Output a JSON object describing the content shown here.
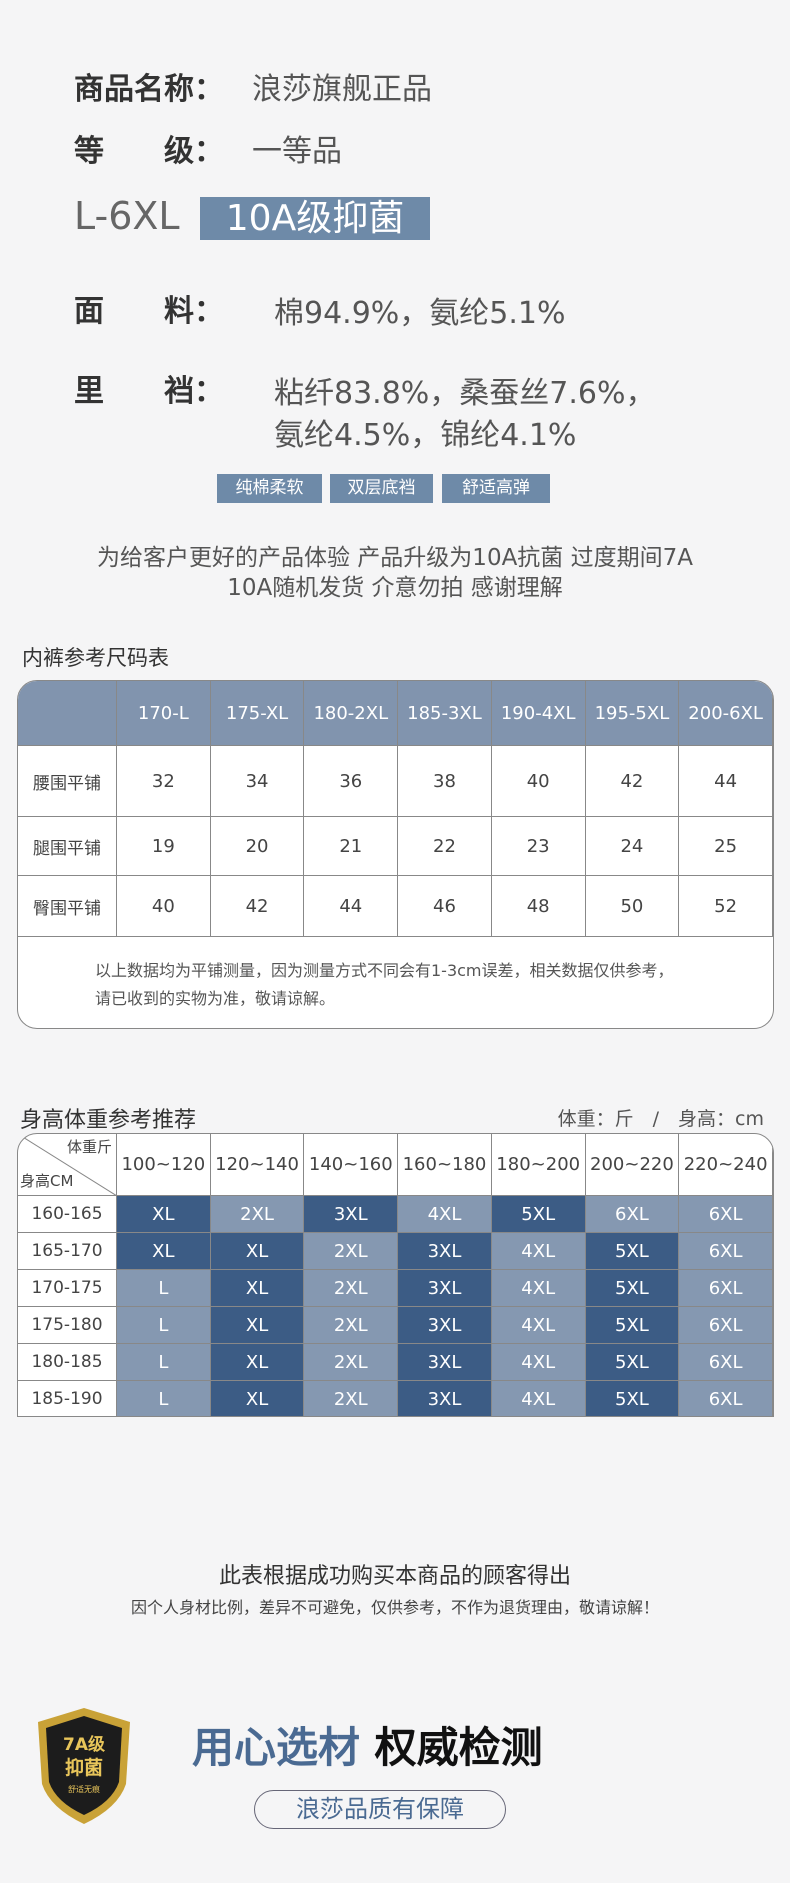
{
  "product": {
    "name": {
      "label": "商品名称：",
      "value": "浪莎旗舰正品"
    },
    "grade": {
      "label": "等　　级：",
      "value": "一等品"
    },
    "size_range": "L-6XL",
    "badge": "10A级抑菌",
    "fabric": {
      "label": "面　　料：",
      "value": "棉94.9%，氨纶5.1%"
    },
    "crotch": {
      "label": "里　　裆：",
      "lines": [
        "粘纤83.8%，桑蚕丝7.6%，",
        "氨纶4.5%，锦纶4.1%"
      ]
    },
    "tags": [
      "纯棉柔软",
      "双层底裆",
      "舒适高弹"
    ]
  },
  "notice": [
    "为给客户更好的产品体验 产品升级为10A抗菌 过度期间7A",
    "10A随机发货 介意勿拍 感谢理解"
  ],
  "size_table": {
    "title": "内裤参考尺码表",
    "columns": [
      "170-L",
      "175-XL",
      "180-2XL",
      "185-3XL",
      "190-4XL",
      "195-5XL",
      "200-6XL"
    ],
    "rows": [
      {
        "label": "腰围平铺",
        "values": [
          32,
          34,
          36,
          38,
          40,
          42,
          44
        ]
      },
      {
        "label": "腿围平铺",
        "values": [
          19,
          20,
          21,
          22,
          23,
          24,
          25
        ]
      },
      {
        "label": "臀围平铺",
        "values": [
          40,
          42,
          44,
          46,
          48,
          50,
          52
        ]
      }
    ],
    "note": [
      "以上数据均为平铺测量，因为测量方式不同会有1-3cm误差，相关数据仅供参考，",
      "请已收到的实物为准，敬请谅解。"
    ]
  },
  "recommend_table": {
    "title": "身高体重参考推荐",
    "unit_note": "体重：斤　/　身高：cm",
    "corner": {
      "top": "体重斤",
      "bottom": "身高CM"
    },
    "columns": [
      "100~120",
      "120~140",
      "140~160",
      "160~180",
      "180~200",
      "200~220",
      "220~240"
    ],
    "rows": [
      {
        "label": "160-165",
        "sizes": [
          "XL",
          "2XL",
          "3XL",
          "4XL",
          "5XL",
          "6XL",
          "6XL"
        ],
        "colors": [
          "#3c5c85",
          "#8598b1",
          "#3c5c85",
          "#8598b1",
          "#3c5c85",
          "#8598b1",
          "#8598b1"
        ]
      },
      {
        "label": "165-170",
        "sizes": [
          "XL",
          "XL",
          "2XL",
          "3XL",
          "4XL",
          "5XL",
          "6XL"
        ],
        "colors": [
          "#3c5c85",
          "#3c5c85",
          "#8598b1",
          "#3c5c85",
          "#8598b1",
          "#3c5c85",
          "#8598b1"
        ]
      },
      {
        "label": "170-175",
        "sizes": [
          "L",
          "XL",
          "2XL",
          "3XL",
          "4XL",
          "5XL",
          "6XL"
        ],
        "colors": [
          "#8598b1",
          "#3c5c85",
          "#8598b1",
          "#3c5c85",
          "#8598b1",
          "#3c5c85",
          "#8598b1"
        ]
      },
      {
        "label": "175-180",
        "sizes": [
          "L",
          "XL",
          "2XL",
          "3XL",
          "4XL",
          "5XL",
          "6XL"
        ],
        "colors": [
          "#8598b1",
          "#3c5c85",
          "#8598b1",
          "#3c5c85",
          "#8598b1",
          "#3c5c85",
          "#8598b1"
        ]
      },
      {
        "label": "180-185",
        "sizes": [
          "L",
          "XL",
          "2XL",
          "3XL",
          "4XL",
          "5XL",
          "6XL"
        ],
        "colors": [
          "#8598b1",
          "#3c5c85",
          "#8598b1",
          "#3c5c85",
          "#8598b1",
          "#3c5c85",
          "#8598b1"
        ]
      },
      {
        "label": "185-190",
        "sizes": [
          "L",
          "XL",
          "2XL",
          "3XL",
          "4XL",
          "5XL",
          "6XL"
        ],
        "colors": [
          "#8598b1",
          "#3c5c85",
          "#8598b1",
          "#3c5c85",
          "#8598b1",
          "#3c5c85",
          "#8598b1"
        ]
      }
    ]
  },
  "footer": {
    "line1": "此表根据成功购买本商品的顾客得出",
    "line2": "因个人身材比例，差异不可避免，仅供参考，不作为退货理由，敬请谅解！"
  },
  "promo": {
    "badge": [
      "7A级",
      "抑菌",
      "舒适无痕"
    ],
    "title": [
      "用心选材",
      "权威检测"
    ],
    "pill": "浪莎品质有保障"
  }
}
